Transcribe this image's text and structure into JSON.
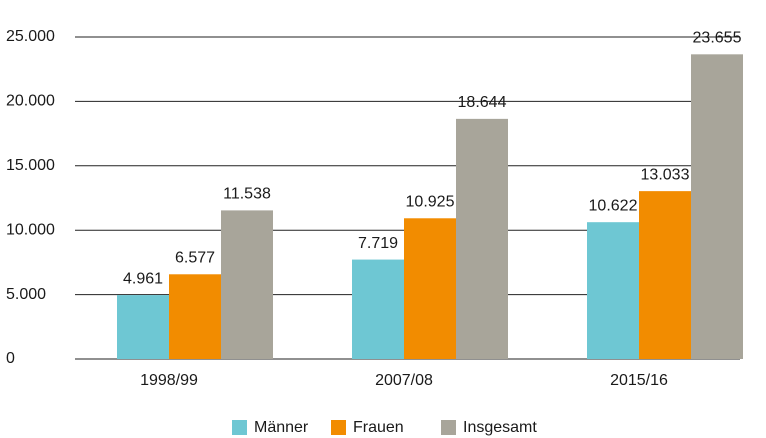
{
  "chart_data": {
    "type": "bar",
    "categories": [
      "1998/99",
      "2007/08",
      "2015/16"
    ],
    "series": [
      {
        "name": "Männer",
        "color": "#6ec7d3",
        "values": [
          4961,
          7719,
          10622
        ],
        "value_labels": [
          "4.961",
          "7.719",
          "10.622"
        ]
      },
      {
        "name": "Frauen",
        "color": "#f28c00",
        "values": [
          6577,
          10925,
          13033
        ],
        "value_labels": [
          "6.577",
          "10.925",
          "13.033"
        ]
      },
      {
        "name": "Insgesamt",
        "color": "#a8a59a",
        "values": [
          11538,
          18644,
          23655
        ],
        "value_labels": [
          "11.538",
          "18.644",
          "23.655"
        ]
      }
    ],
    "ylim": [
      0,
      25000
    ],
    "yticks": [
      0,
      {
        "value": 5000,
        "label": "5.000"
      },
      {
        "value": 10000,
        "label": "10.000"
      },
      {
        "value": 15000,
        "label": "15.000"
      },
      {
        "value": 20000,
        "label": "20.000"
      },
      {
        "value": 25000,
        "label": "25.000"
      }
    ],
    "grid": true,
    "legend": "bottom"
  }
}
